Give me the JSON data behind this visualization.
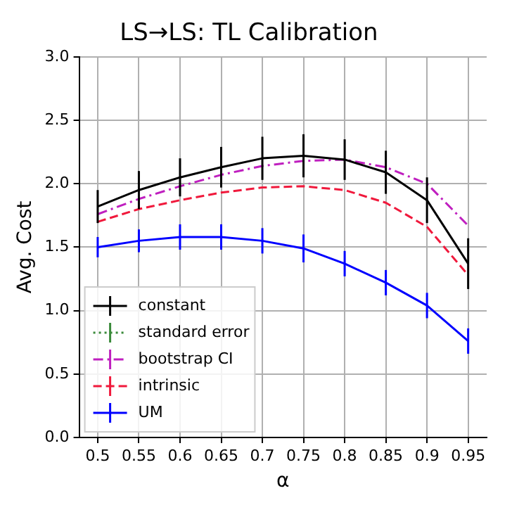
{
  "chart_data": {
    "type": "line",
    "title": "LS→LS: TL Calibration",
    "xlabel": "α",
    "ylabel": "Avg. Cost",
    "x": [
      0.5,
      0.55,
      0.6,
      0.65,
      0.7,
      0.75,
      0.8,
      0.85,
      0.9,
      0.95
    ],
    "xlim": [
      0.4775,
      0.9725
    ],
    "xticks": [
      0.5,
      0.55,
      0.6,
      0.65,
      0.7,
      0.75,
      0.8,
      0.85,
      0.9,
      0.95
    ],
    "ylim": [
      0,
      3
    ],
    "yticks": [
      {
        "value": 0,
        "label": "0.0"
      },
      {
        "value": 0.5,
        "label": "0.5"
      },
      {
        "value": 1,
        "label": "1.0"
      },
      {
        "value": 1.5,
        "label": "1.5"
      },
      {
        "value": 2,
        "label": "2.0"
      },
      {
        "value": 2.5,
        "label": "2.5"
      },
      {
        "value": 3,
        "label": "3.0"
      }
    ],
    "grid": true,
    "legend": "bottom left",
    "marker": "none",
    "series": [
      {
        "name": "constant",
        "color": "#000000",
        "line_style": "solid",
        "values": [
          1.82,
          1.95,
          2.05,
          2.13,
          2.2,
          2.22,
          2.19,
          2.09,
          1.87,
          1.37
        ],
        "errors": [
          0.13,
          0.15,
          0.15,
          0.16,
          0.17,
          0.17,
          0.16,
          0.17,
          0.18,
          0.2
        ]
      },
      {
        "name": "standard error",
        "color": "#3a8a3a",
        "line_style": "dotted",
        "values": [
          null,
          null,
          null,
          null,
          null,
          null,
          null,
          null,
          null,
          null
        ]
      },
      {
        "name": "bootstrap CI",
        "color": "#bf1fbf",
        "line_style": "dashdot",
        "values": [
          1.76,
          1.88,
          1.98,
          2.07,
          2.14,
          2.18,
          2.19,
          2.13,
          2.0,
          1.67
        ]
      },
      {
        "name": "intrinsic",
        "color": "#f0193c",
        "line_style": "dashed",
        "values": [
          1.7,
          1.8,
          1.87,
          1.93,
          1.97,
          1.98,
          1.95,
          1.85,
          1.66,
          1.28
        ]
      },
      {
        "name": "UM",
        "color": "#0000ff",
        "line_style": "solid",
        "values": [
          1.5,
          1.55,
          1.58,
          1.58,
          1.55,
          1.49,
          1.37,
          1.22,
          1.04,
          0.76
        ],
        "errors": [
          0.08,
          0.09,
          0.1,
          0.1,
          0.1,
          0.11,
          0.1,
          0.1,
          0.1,
          0.1
        ]
      }
    ]
  }
}
